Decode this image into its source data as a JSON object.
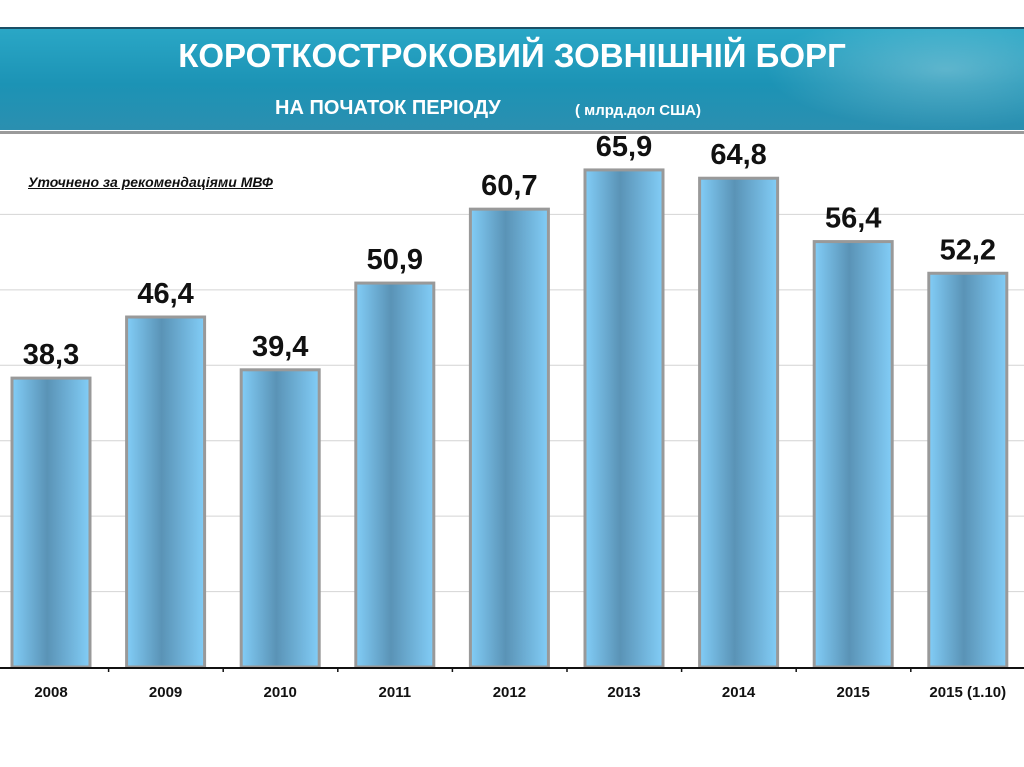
{
  "header": {
    "title": "КОРОТКОСТРОКОВИЙ ЗОВНІШНІЙ БОРГ",
    "subtitle": "НА ПОЧАТОК ПЕРІОДУ",
    "units": "( млрд.дол США)",
    "color": "#1f9abb"
  },
  "note": "Уточнено за рекомендаціями  МВФ",
  "chart_data": {
    "type": "bar",
    "title": "КОРОТКОСТРОКОВИЙ ЗОВНІШНІЙ БОРГ НА ПОЧАТОК ПЕРІОДУ",
    "ylabel": "млрд.дол США",
    "xlabel": "",
    "categories": [
      "2008",
      "2009",
      "2010",
      "2011",
      "2012",
      "2013",
      "2014",
      "2015",
      "2015 (1.10)"
    ],
    "values": [
      38.3,
      46.4,
      39.4,
      50.9,
      60.7,
      65.9,
      64.8,
      56.4,
      52.2
    ],
    "data_labels": [
      "38,3",
      "46,4",
      "39,4",
      "50,9",
      "60,7",
      "65,9",
      "64,8",
      "56,4",
      "52,2"
    ],
    "ylim": [
      0,
      70
    ],
    "grid": true,
    "bar_color": "#7cc4f0"
  }
}
